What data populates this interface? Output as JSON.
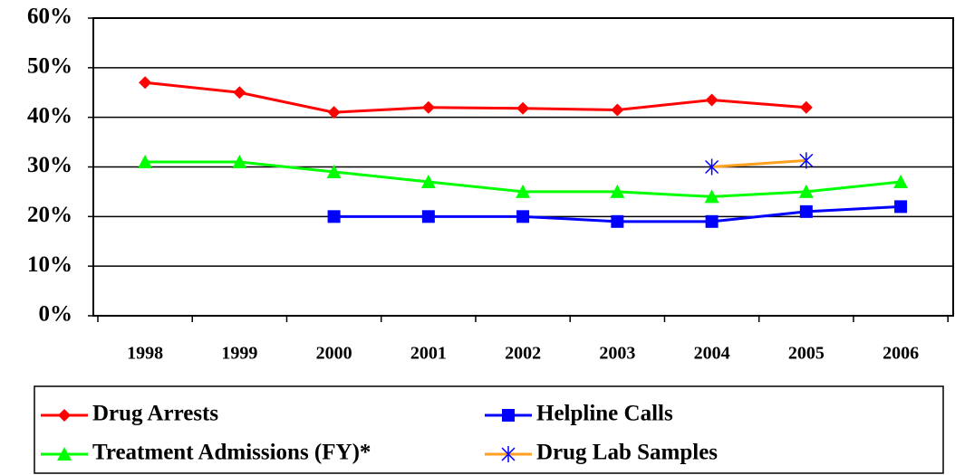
{
  "chart_data": {
    "type": "line",
    "categories": [
      "1998",
      "1999",
      "2000",
      "2001",
      "2002",
      "2003",
      "2004",
      "2005",
      "2006"
    ],
    "series": [
      {
        "name": "Drug Arrests",
        "color": "#ff0000",
        "marker": "diamond",
        "values": [
          47,
          45,
          41,
          42,
          41.8,
          41.5,
          43.5,
          42,
          null
        ]
      },
      {
        "name": "Helpline Calls",
        "color": "#0000ff",
        "marker": "square",
        "values": [
          null,
          null,
          20,
          20,
          20,
          19,
          19,
          21,
          22
        ]
      },
      {
        "name": "Treatment Admissions (FY)*",
        "color": "#00ff00",
        "marker": "triangle",
        "values": [
          31,
          31,
          29,
          27,
          25,
          25,
          24,
          25,
          27
        ]
      },
      {
        "name": "Drug Lab Samples",
        "color": "#ffa020",
        "marker": "asterisk",
        "marker_color": "#0000ff",
        "values": [
          null,
          null,
          null,
          null,
          null,
          null,
          30,
          31.3,
          null
        ]
      }
    ],
    "ylim": [
      0,
      60
    ],
    "yticks": [
      {
        "value": 0,
        "label": "0%"
      },
      {
        "value": 10,
        "label": "10%"
      },
      {
        "value": 20,
        "label": "20%"
      },
      {
        "value": 30,
        "label": "30%"
      },
      {
        "value": 40,
        "label": "40%"
      },
      {
        "value": 50,
        "label": "50%"
      },
      {
        "value": 60,
        "label": "60%"
      }
    ],
    "grid": true,
    "legend": "bottom"
  }
}
